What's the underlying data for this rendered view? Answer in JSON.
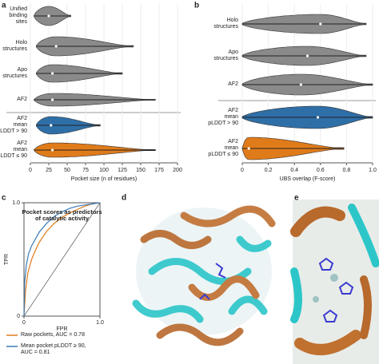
{
  "chart_data": [
    {
      "type": "violin",
      "panel_label": "a",
      "categories": [
        "Unified\nbinding\nsites",
        "Holo\nstructures",
        "Apo\nstructures",
        "AF2",
        "AF2\nmean\npLDDT > 90",
        "AF2\nmean\npLDDT ≤ 90"
      ],
      "values": [
        25,
        35,
        30,
        30,
        28,
        30
      ],
      "ranges": [
        [
          5,
          55
        ],
        [
          8,
          140
        ],
        [
          8,
          125
        ],
        [
          5,
          170
        ],
        [
          8,
          95
        ],
        [
          5,
          170
        ]
      ],
      "colors": [
        "#8a8a8a",
        "#8a8a8a",
        "#8a8a8a",
        "#8a8a8a",
        "#2f6fa8",
        "#e07b1a"
      ],
      "xlim": [
        0,
        200
      ],
      "xticks": [
        0,
        25,
        50,
        75,
        100,
        125,
        150,
        175,
        200
      ],
      "xlabel": "Pocket size (n of residues)"
    },
    {
      "type": "violin",
      "panel_label": "b",
      "categories": [
        "Holo\nstructures",
        "Apo\nstructures",
        "AF2",
        "AF2\nmean\npLDDT > 90",
        "AF2\nmean\npLDDT ≤ 90"
      ],
      "values": [
        0.6,
        0.5,
        0.45,
        0.58,
        0.05
      ],
      "ranges": [
        [
          0,
          0.95
        ],
        [
          0,
          0.95
        ],
        [
          0,
          1
        ],
        [
          0,
          1
        ],
        [
          0,
          0.78
        ]
      ],
      "colors": [
        "#8a8a8a",
        "#8a8a8a",
        "#8a8a8a",
        "#2f6fa8",
        "#e07b1a"
      ],
      "xlim": [
        0,
        1
      ],
      "xticks": [
        0,
        0.2,
        0.4,
        0.6,
        0.8,
        {
          "value": 1,
          "label": "1.0"
        }
      ],
      "xlabel": "UBS overlap (F-score)"
    },
    {
      "type": "line",
      "panel_label": "c",
      "title": "Pocket scores as predictors\nof catalytic activity",
      "xlabel": "FPR",
      "ylabel": "TPR",
      "xlim": [
        0,
        1
      ],
      "ylim": [
        0,
        1
      ],
      "xticks": [
        0,
        {
          "value": 1,
          "label": "1.0"
        }
      ],
      "yticks": [
        0,
        {
          "value": 1,
          "label": "1.0"
        }
      ],
      "series": [
        {
          "name": "Raw pockets, AUC = 0.78",
          "color": "#e07b1a",
          "x": [
            0,
            0.02,
            0.05,
            0.1,
            0.15,
            0.2,
            0.3,
            0.4,
            0.5,
            0.6,
            0.7,
            0.8,
            0.9,
            1
          ],
          "values": [
            0,
            0.22,
            0.38,
            0.5,
            0.58,
            0.65,
            0.75,
            0.82,
            0.87,
            0.91,
            0.94,
            0.97,
            0.99,
            1
          ]
        },
        {
          "name": "Mean pocket pLDDT ≥ 90,\nAUC = 0.81",
          "color": "#3a7ab5",
          "x": [
            0,
            0.01,
            0.03,
            0.06,
            0.1,
            0.15,
            0.2,
            0.3,
            0.4,
            0.5,
            0.6,
            0.7,
            0.8,
            0.9,
            1
          ],
          "values": [
            0,
            0.3,
            0.45,
            0.55,
            0.62,
            0.68,
            0.74,
            0.82,
            0.88,
            0.92,
            0.95,
            0.97,
            0.98,
            0.99,
            1
          ]
        }
      ]
    }
  ],
  "images": [
    {
      "label": "d"
    },
    {
      "label": "e"
    }
  ]
}
